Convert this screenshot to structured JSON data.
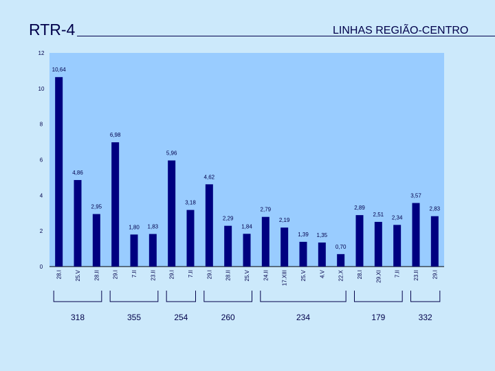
{
  "header": {
    "title": "RTR-4",
    "subtitle": "LINHAS REGIÃO-CENTRO"
  },
  "colors": {
    "background": "#cce9fb",
    "plot_area": "#99ccff",
    "bar": "#000080",
    "text": "#00004a"
  },
  "chart_data": {
    "type": "bar",
    "title": "",
    "xlabel": "",
    "ylabel": "",
    "ylim": [
      0,
      12
    ],
    "yticks": [
      0,
      2,
      4,
      6,
      8,
      10,
      12
    ],
    "grid": false,
    "legend": "none",
    "categories": [
      "28.I",
      "25.V",
      "28.II",
      "29.I",
      "7.II",
      "23.II",
      "29.I",
      "7.II",
      "29.I",
      "28.II",
      "25.V",
      "24.II",
      "17.XIII",
      "25.V",
      "4.V",
      "22.X",
      "28.I",
      "29.XI",
      "7.II",
      "23.II",
      "29.I"
    ],
    "value_labels": [
      "10,64",
      "4,86",
      "2,95",
      "6,98",
      "1,80",
      "1,83",
      "5,96",
      "3,18",
      "4,62",
      "2,29",
      "1,84",
      "2,79",
      "2,19",
      "1,39",
      "1,35",
      "0,70",
      "2,89",
      "2,51",
      "2,34",
      "3,57",
      "2,83"
    ],
    "values": [
      10.64,
      4.86,
      2.95,
      6.98,
      1.8,
      1.83,
      5.96,
      3.18,
      4.62,
      2.29,
      1.84,
      2.79,
      2.19,
      1.39,
      1.35,
      0.7,
      2.89,
      2.51,
      2.34,
      3.57,
      2.83
    ],
    "groups": [
      {
        "label": "318",
        "start": 0,
        "end": 2
      },
      {
        "label": "355",
        "start": 3,
        "end": 5
      },
      {
        "label": "254",
        "start": 6,
        "end": 7
      },
      {
        "label": "260",
        "start": 8,
        "end": 10
      },
      {
        "label": "234",
        "start": 11,
        "end": 15
      },
      {
        "label": "179",
        "start": 16,
        "end": 18
      },
      {
        "label": "332",
        "start": 19,
        "end": 20
      }
    ]
  }
}
